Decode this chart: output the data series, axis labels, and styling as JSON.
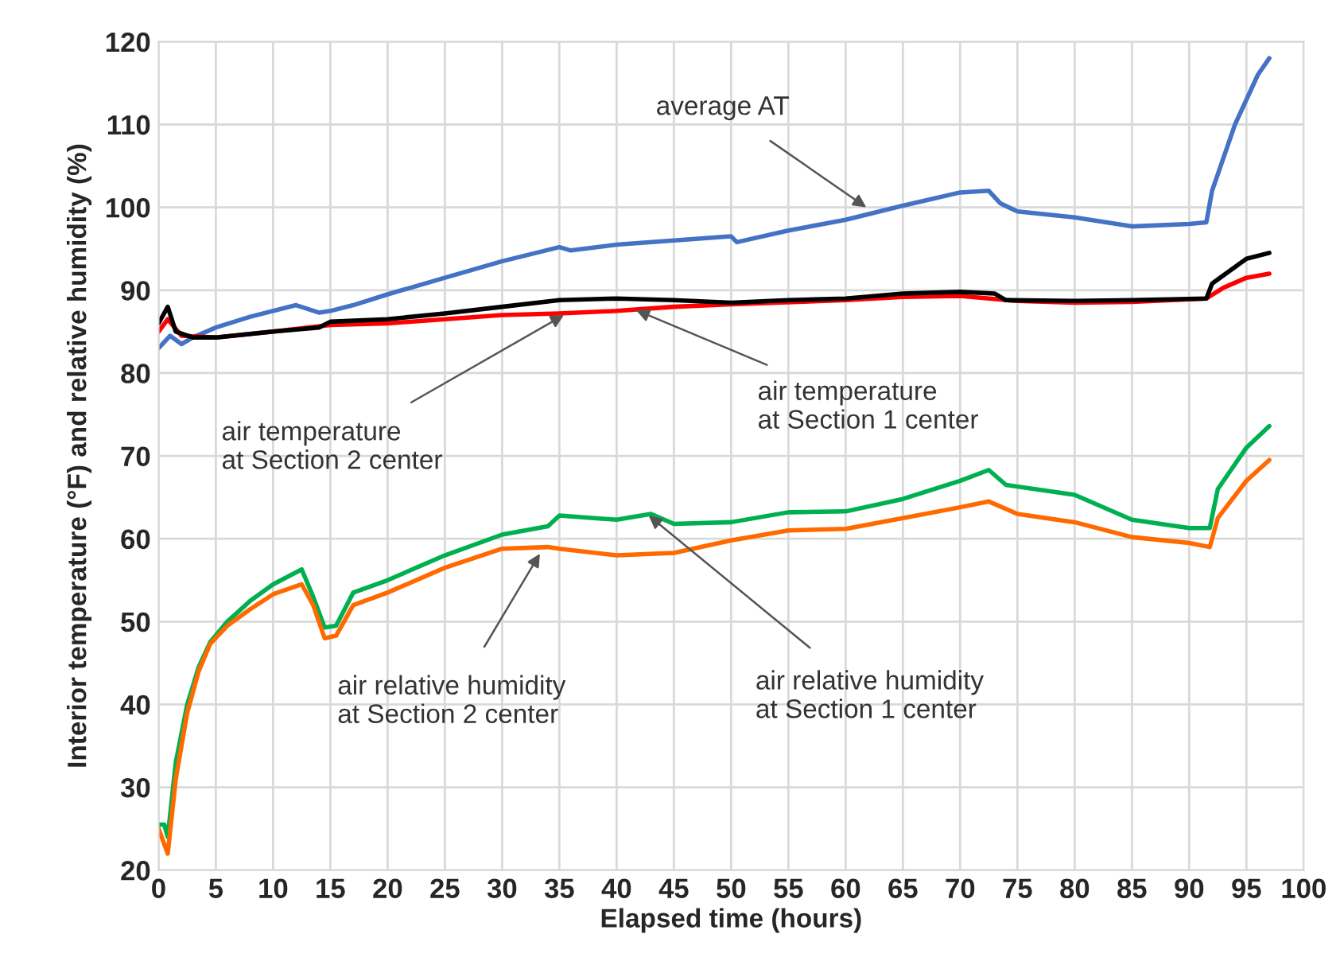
{
  "chart_data": {
    "type": "line",
    "xlabel": "Elapsed time (hours)",
    "ylabel": "Interior temperature (°F) and relative humidity (%)",
    "xlim": [
      0,
      100
    ],
    "xticks": [
      0,
      5,
      10,
      15,
      20,
      25,
      30,
      35,
      40,
      45,
      50,
      55,
      60,
      65,
      70,
      75,
      80,
      85,
      90,
      95,
      100
    ],
    "ylim": [
      20,
      120
    ],
    "yticks": [
      20,
      30,
      40,
      50,
      60,
      70,
      80,
      90,
      100,
      110,
      120
    ],
    "grid": true,
    "marker": "none",
    "line_style": "solid",
    "series": [
      {
        "color": "#4472c4",
        "x": [
          0,
          1,
          2,
          3,
          5,
          8,
          12,
          14,
          15,
          17,
          20,
          25,
          30,
          35,
          36,
          40,
          50,
          50.5,
          55,
          60,
          65,
          70,
          72.5,
          73.5,
          75,
          80,
          85,
          90,
          91.5,
          92,
          94,
          96,
          97
        ],
        "values": [
          83,
          84.5,
          83.5,
          84.3,
          85.5,
          86.8,
          88.2,
          87.3,
          87.5,
          88.2,
          89.5,
          91.5,
          93.5,
          95.2,
          94.8,
          95.5,
          96.5,
          95.8,
          97.2,
          98.5,
          100.2,
          101.8,
          102,
          100.5,
          99.5,
          98.8,
          97.7,
          98,
          98.2,
          102,
          110,
          116,
          118
        ]
      },
      {
        "color": "#ff0000",
        "x": [
          0,
          0.8,
          2,
          5,
          10,
          15,
          20,
          25,
          30,
          35,
          40,
          45,
          50,
          60,
          65,
          70,
          75,
          80,
          85,
          91.5,
          93,
          95,
          97
        ],
        "values": [
          85,
          86.5,
          84.5,
          84.3,
          85,
          85.8,
          86,
          86.5,
          87,
          87.2,
          87.5,
          88,
          88.3,
          88.8,
          89.2,
          89.3,
          88.7,
          88.5,
          88.6,
          89,
          90.3,
          91.5,
          92
        ]
      },
      {
        "color": "#000000",
        "x": [
          0,
          0.8,
          1.5,
          3,
          5,
          10,
          14,
          15,
          20,
          25,
          30,
          35,
          40,
          45,
          50,
          55,
          60,
          65,
          70,
          73,
          74,
          80,
          85,
          91.5,
          92,
          95,
          97
        ],
        "values": [
          86,
          88,
          85,
          84.3,
          84.3,
          85,
          85.5,
          86.2,
          86.5,
          87.2,
          88,
          88.8,
          89,
          88.8,
          88.5,
          88.8,
          89,
          89.6,
          89.8,
          89.6,
          88.8,
          88.7,
          88.8,
          89,
          90.8,
          93.8,
          94.5
        ]
      },
      {
        "color": "#00b050",
        "x": [
          0,
          0.5,
          0.8,
          1.5,
          2.5,
          3.5,
          4.5,
          6,
          8,
          10,
          12.5,
          13.5,
          14.5,
          15.5,
          17,
          20,
          25,
          30,
          34,
          35,
          40,
          43,
          45,
          50,
          55,
          60,
          65,
          70,
          72.5,
          74,
          80,
          85,
          90,
          91.8,
          92.5,
          95,
          97
        ],
        "values": [
          25.5,
          25.5,
          24,
          33,
          40,
          44.5,
          47.5,
          50,
          52.5,
          54.5,
          56.3,
          53,
          49.3,
          49.5,
          53.5,
          55,
          58,
          60.5,
          61.5,
          62.8,
          62.3,
          63,
          61.8,
          62,
          63.2,
          63.3,
          64.8,
          67,
          68.3,
          66.5,
          65.3,
          62.3,
          61.3,
          61.3,
          66,
          71,
          73.6
        ]
      },
      {
        "color": "#ff6a00",
        "x": [
          0,
          0.8,
          1.5,
          2.5,
          3.5,
          4.5,
          6,
          8,
          10,
          12.5,
          13.5,
          14.5,
          15.5,
          17,
          20,
          25,
          30,
          34,
          35,
          40,
          45,
          50,
          55,
          60,
          65,
          70,
          72.5,
          75,
          80,
          85,
          90,
          91.8,
          92.5,
          95,
          97
        ],
        "values": [
          25,
          22,
          31,
          39,
          44,
          47.3,
          49.5,
          51.5,
          53.3,
          54.5,
          52,
          48,
          48.3,
          52,
          53.5,
          56.5,
          58.8,
          59,
          58.8,
          58,
          58.3,
          59.8,
          61,
          61.2,
          62.5,
          63.8,
          64.5,
          63,
          62,
          60.2,
          59.5,
          59,
          62.5,
          67,
          69.5
        ]
      }
    ],
    "annotations": [
      {
        "text": "average AT",
        "x": 61.8,
        "y": 100
      },
      {
        "text": "air temperature\nat Section 2 center",
        "x": 35.4,
        "y": 87
      },
      {
        "text": "air temperature\nat Section 1 center",
        "x": 41.7,
        "y": 87.6
      },
      {
        "text": "air relative humidity\nat Section 2 center",
        "x": 33.3,
        "y": 58.2
      },
      {
        "text": "air relative humidity\nat Section 1 center",
        "x": 42.8,
        "y": 62.8
      }
    ]
  }
}
